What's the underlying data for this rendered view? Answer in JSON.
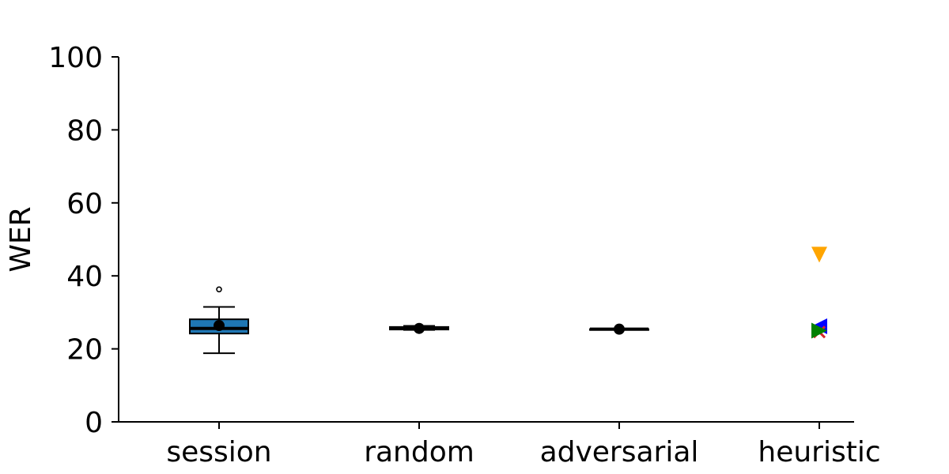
{
  "chart_data": {
    "type": "box",
    "title": "",
    "xlabel": "",
    "ylabel": "WER",
    "ylim": [
      0,
      100
    ],
    "yticks": [
      0,
      20,
      40,
      60,
      80,
      100
    ],
    "grid": false,
    "categories": [
      "session",
      "random",
      "adversarial",
      "heuristic"
    ],
    "boxes": [
      {
        "category": "session",
        "whisker_low": 18.8,
        "q1": 24.2,
        "median": 25.6,
        "q3": 28.1,
        "whisker_high": 31.5,
        "mean": 26.4,
        "outliers": [
          36.3
        ],
        "color": "#1f77b4"
      },
      {
        "category": "random",
        "whisker_low": 25.2,
        "q1": 25.3,
        "median": 25.6,
        "q3": 26.0,
        "whisker_high": 26.3,
        "mean": 25.6,
        "outliers": [],
        "color": "#1f77b4"
      },
      {
        "category": "adversarial",
        "whisker_low": 25.4,
        "q1": 25.4,
        "median": 25.4,
        "q3": 25.4,
        "whisker_high": 25.4,
        "mean": 25.4,
        "outliers": [],
        "color": "#1f77b4"
      }
    ],
    "heuristic_points": [
      {
        "category": "heuristic",
        "value": 45.8,
        "marker": "triangle-down",
        "color": "#ffa500"
      },
      {
        "category": "heuristic",
        "value": 26.2,
        "marker": "triangle-left",
        "color": "#0000ff"
      },
      {
        "category": "heuristic",
        "value": 24.6,
        "marker": "x",
        "color": "#d62728"
      },
      {
        "category": "heuristic",
        "value": 25.0,
        "marker": "triangle-right",
        "color": "#008000"
      }
    ]
  }
}
